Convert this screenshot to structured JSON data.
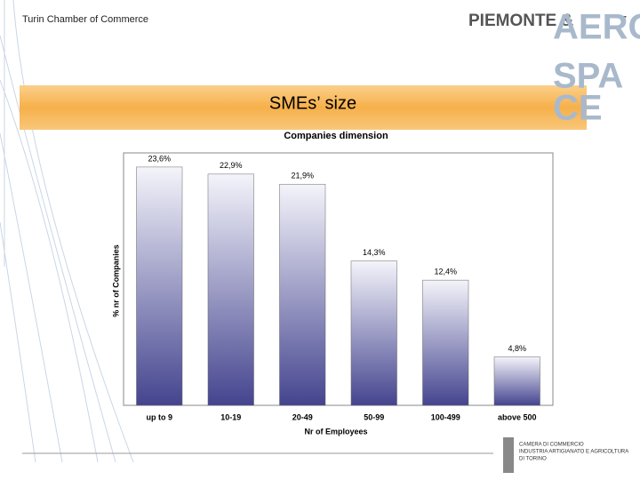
{
  "slide": {
    "header": "Turin Chamber of Commerce",
    "page_number": "7",
    "title": "SMEs’ size",
    "logo": [
      "PIEMONTE &",
      "AERO",
      "SPA",
      "CE"
    ],
    "footer_logo": [
      "CAMERA DI COMMERCIO",
      "INDUSTRIA ARTIGIANATO E AGRICOLTURA",
      "DI TORINO"
    ]
  },
  "chart_data": {
    "type": "bar",
    "title": "Companies dimension",
    "x_label": "Nr of Employees",
    "y_label": "% nr of Companies",
    "categories": [
      "up to 9",
      "10-19",
      "20-49",
      "50-99",
      "100-499",
      "above 500"
    ],
    "values": [
      23.6,
      22.9,
      21.9,
      14.3,
      12.4,
      4.8
    ],
    "value_labels": [
      "23,6%",
      "22,9%",
      "21,9%",
      "14,3%",
      "12,4%",
      "4,8%"
    ],
    "ylim": [
      0,
      25
    ],
    "color": "#44448f"
  }
}
